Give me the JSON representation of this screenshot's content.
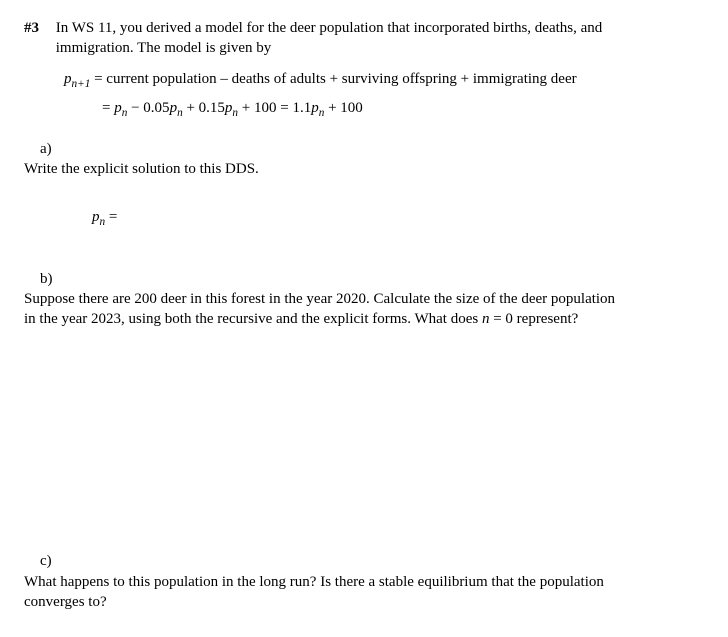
{
  "problem": {
    "number": "#3",
    "intro_l1": "In WS 11, you derived a model for the deer population that incorporated births, deaths, and",
    "intro_l2": "immigration. The model is given by",
    "eqn_lhs": "p",
    "eqn_lhs_sub": "n+1",
    "eqn_rhs_words": " = current population – deaths of adults  + surviving offspring + immigrating deer",
    "eqn_line2_pre": "= ",
    "eqn_line2_body": " − 0.05",
    "eqn_line2_body2": " + 0.15",
    "eqn_line2_body3": " + 100 = 1.1",
    "eqn_line2_body4": " + 100",
    "p_sym": "p",
    "n_sub": "n"
  },
  "parts": {
    "a": {
      "label": "a)",
      "text": "Write the explicit solution to this DDS.",
      "pn_lhs": "p",
      "pn_sub": "n",
      "pn_eq": " ="
    },
    "b": {
      "label": "b)",
      "text_l1": "Suppose there are 200 deer in this forest in the year 2020. Calculate the size of the deer population",
      "text_l2_pre": "in the year 2023, using both the recursive and the explicit forms. What does ",
      "text_l2_mid": "n",
      "text_l2_post": " = 0 represent?"
    },
    "c": {
      "label": "c)",
      "text_l1": "What happens to this population in the long run? Is there a stable equilibrium that the population",
      "text_l2": "converges to?"
    }
  }
}
